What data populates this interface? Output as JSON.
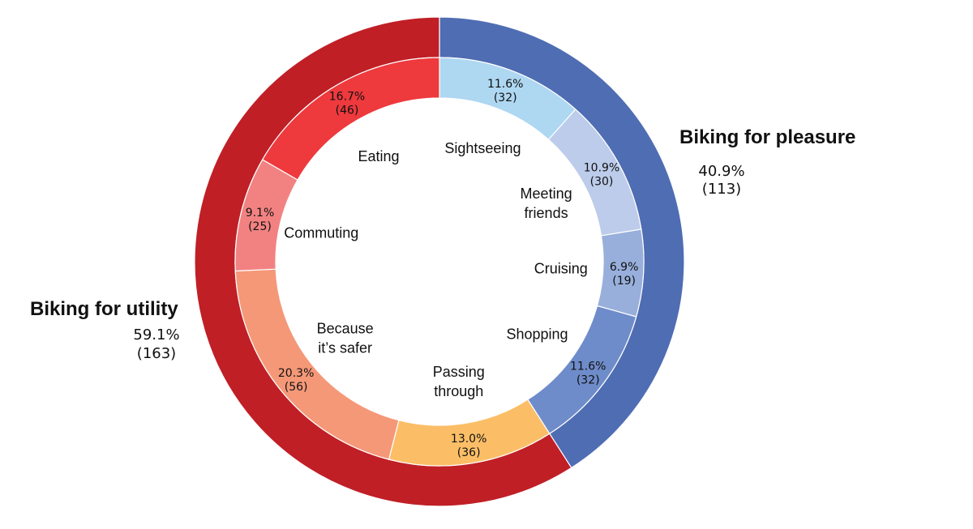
{
  "chart_data": {
    "type": "nested-donut",
    "title": "",
    "groups": [
      {
        "name": "Biking for pleasure",
        "pct": "40.9%",
        "count": "(113)",
        "value": 113,
        "color": "#4f6db3"
      },
      {
        "name": "Biking for utility",
        "pct": "59.1%",
        "count": "(163)",
        "value": 163,
        "color": "#c01f26"
      }
    ],
    "inner": [
      {
        "label": "Sightseeing",
        "pct": "11.6%",
        "count": "(32)",
        "value": 32,
        "color": "#aed7f2"
      },
      {
        "label": "Meeting friends",
        "lines": [
          "Meeting",
          "friends"
        ],
        "pct": "10.9%",
        "count": "(30)",
        "value": 30,
        "color": "#bcccea"
      },
      {
        "label": "Cruising",
        "pct": "6.9%",
        "count": "(19)",
        "value": 19,
        "color": "#98afdb"
      },
      {
        "label": "Shopping",
        "pct": "11.6%",
        "count": "(32)",
        "value": 32,
        "color": "#6f8cca"
      },
      {
        "label": "Passing through",
        "lines": [
          "Passing",
          "through"
        ],
        "pct": "13.0%",
        "count": "(36)",
        "value": 36,
        "color": "#fbbe67"
      },
      {
        "label": "Because it’s safer",
        "lines": [
          "Because",
          "it’s safer"
        ],
        "pct": "20.3%",
        "count": "(56)",
        "value": 56,
        "color": "#f59878"
      },
      {
        "label": "Commuting",
        "pct": "9.1%",
        "count": "(25)",
        "value": 25,
        "color": "#f28282"
      },
      {
        "label": "Eating",
        "pct": "16.7%",
        "count": "(46)",
        "value": 46,
        "color": "#ee393d"
      }
    ]
  }
}
